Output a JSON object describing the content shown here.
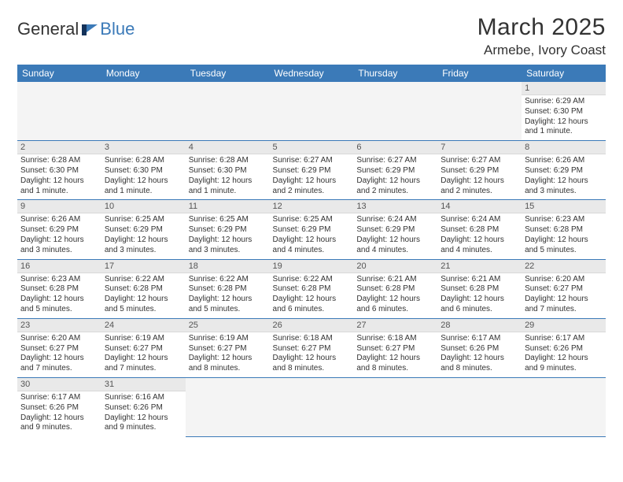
{
  "logo": {
    "general": "General",
    "blue": "Blue"
  },
  "title": {
    "monthYear": "March 2025",
    "location": "Armebe, Ivory Coast"
  },
  "colors": {
    "headerBg": "#3b7ab8",
    "dayNumBg": "#e9e9e9",
    "blankBg": "#f4f4f4"
  },
  "weekdays": [
    "Sunday",
    "Monday",
    "Tuesday",
    "Wednesday",
    "Thursday",
    "Friday",
    "Saturday"
  ],
  "startOffset": 6,
  "daysInMonth": 31,
  "days": [
    {
      "n": 1,
      "sunrise": "6:29 AM",
      "sunset": "6:30 PM",
      "daylight": "12 hours and 1 minute."
    },
    {
      "n": 2,
      "sunrise": "6:28 AM",
      "sunset": "6:30 PM",
      "daylight": "12 hours and 1 minute."
    },
    {
      "n": 3,
      "sunrise": "6:28 AM",
      "sunset": "6:30 PM",
      "daylight": "12 hours and 1 minute."
    },
    {
      "n": 4,
      "sunrise": "6:28 AM",
      "sunset": "6:30 PM",
      "daylight": "12 hours and 1 minute."
    },
    {
      "n": 5,
      "sunrise": "6:27 AM",
      "sunset": "6:29 PM",
      "daylight": "12 hours and 2 minutes."
    },
    {
      "n": 6,
      "sunrise": "6:27 AM",
      "sunset": "6:29 PM",
      "daylight": "12 hours and 2 minutes."
    },
    {
      "n": 7,
      "sunrise": "6:27 AM",
      "sunset": "6:29 PM",
      "daylight": "12 hours and 2 minutes."
    },
    {
      "n": 8,
      "sunrise": "6:26 AM",
      "sunset": "6:29 PM",
      "daylight": "12 hours and 3 minutes."
    },
    {
      "n": 9,
      "sunrise": "6:26 AM",
      "sunset": "6:29 PM",
      "daylight": "12 hours and 3 minutes."
    },
    {
      "n": 10,
      "sunrise": "6:25 AM",
      "sunset": "6:29 PM",
      "daylight": "12 hours and 3 minutes."
    },
    {
      "n": 11,
      "sunrise": "6:25 AM",
      "sunset": "6:29 PM",
      "daylight": "12 hours and 3 minutes."
    },
    {
      "n": 12,
      "sunrise": "6:25 AM",
      "sunset": "6:29 PM",
      "daylight": "12 hours and 4 minutes."
    },
    {
      "n": 13,
      "sunrise": "6:24 AM",
      "sunset": "6:29 PM",
      "daylight": "12 hours and 4 minutes."
    },
    {
      "n": 14,
      "sunrise": "6:24 AM",
      "sunset": "6:28 PM",
      "daylight": "12 hours and 4 minutes."
    },
    {
      "n": 15,
      "sunrise": "6:23 AM",
      "sunset": "6:28 PM",
      "daylight": "12 hours and 5 minutes."
    },
    {
      "n": 16,
      "sunrise": "6:23 AM",
      "sunset": "6:28 PM",
      "daylight": "12 hours and 5 minutes."
    },
    {
      "n": 17,
      "sunrise": "6:22 AM",
      "sunset": "6:28 PM",
      "daylight": "12 hours and 5 minutes."
    },
    {
      "n": 18,
      "sunrise": "6:22 AM",
      "sunset": "6:28 PM",
      "daylight": "12 hours and 5 minutes."
    },
    {
      "n": 19,
      "sunrise": "6:22 AM",
      "sunset": "6:28 PM",
      "daylight": "12 hours and 6 minutes."
    },
    {
      "n": 20,
      "sunrise": "6:21 AM",
      "sunset": "6:28 PM",
      "daylight": "12 hours and 6 minutes."
    },
    {
      "n": 21,
      "sunrise": "6:21 AM",
      "sunset": "6:28 PM",
      "daylight": "12 hours and 6 minutes."
    },
    {
      "n": 22,
      "sunrise": "6:20 AM",
      "sunset": "6:27 PM",
      "daylight": "12 hours and 7 minutes."
    },
    {
      "n": 23,
      "sunrise": "6:20 AM",
      "sunset": "6:27 PM",
      "daylight": "12 hours and 7 minutes."
    },
    {
      "n": 24,
      "sunrise": "6:19 AM",
      "sunset": "6:27 PM",
      "daylight": "12 hours and 7 minutes."
    },
    {
      "n": 25,
      "sunrise": "6:19 AM",
      "sunset": "6:27 PM",
      "daylight": "12 hours and 8 minutes."
    },
    {
      "n": 26,
      "sunrise": "6:18 AM",
      "sunset": "6:27 PM",
      "daylight": "12 hours and 8 minutes."
    },
    {
      "n": 27,
      "sunrise": "6:18 AM",
      "sunset": "6:27 PM",
      "daylight": "12 hours and 8 minutes."
    },
    {
      "n": 28,
      "sunrise": "6:17 AM",
      "sunset": "6:26 PM",
      "daylight": "12 hours and 8 minutes."
    },
    {
      "n": 29,
      "sunrise": "6:17 AM",
      "sunset": "6:26 PM",
      "daylight": "12 hours and 9 minutes."
    },
    {
      "n": 30,
      "sunrise": "6:17 AM",
      "sunset": "6:26 PM",
      "daylight": "12 hours and 9 minutes."
    },
    {
      "n": 31,
      "sunrise": "6:16 AM",
      "sunset": "6:26 PM",
      "daylight": "12 hours and 9 minutes."
    }
  ],
  "labels": {
    "sunrise": "Sunrise:",
    "sunset": "Sunset:",
    "daylight": "Daylight:"
  }
}
